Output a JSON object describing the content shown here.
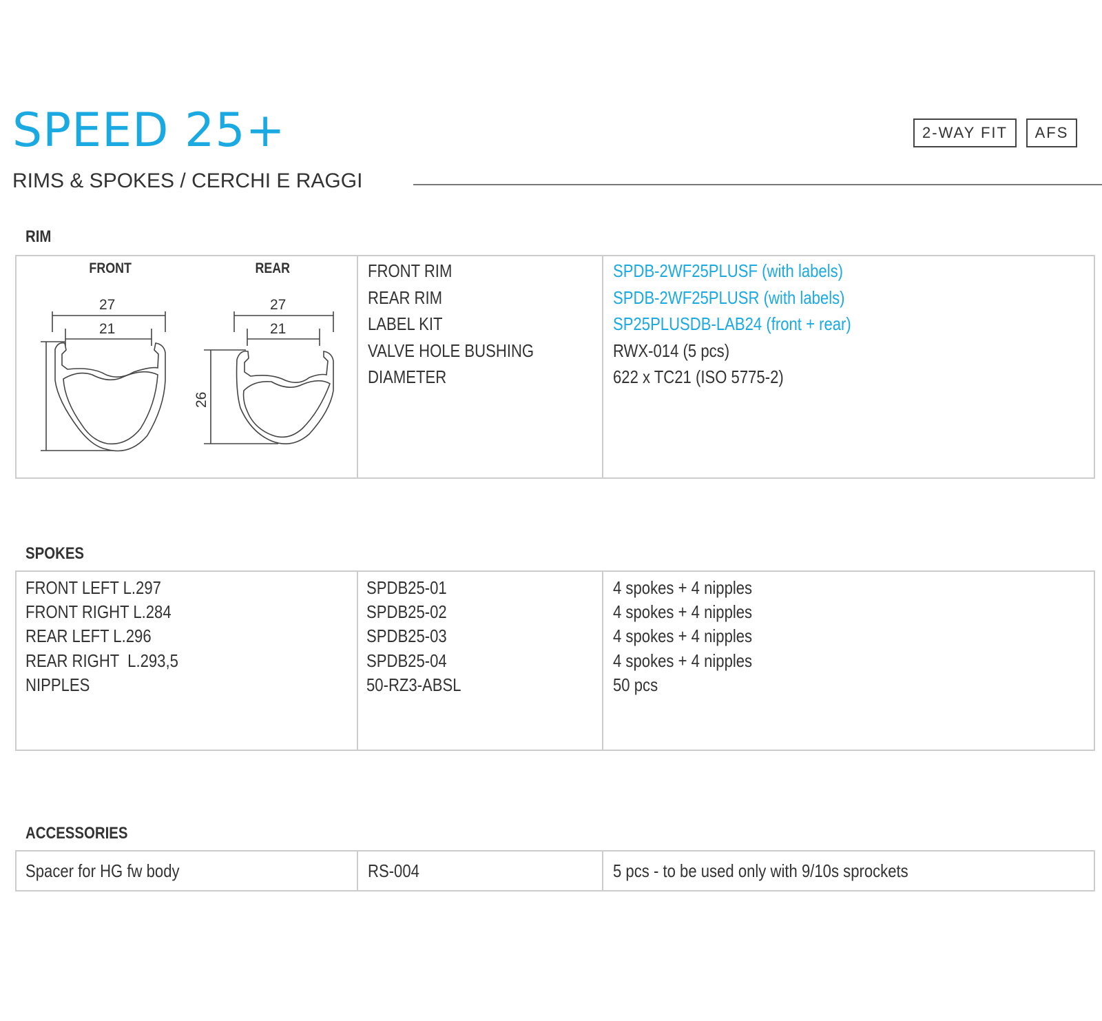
{
  "header": {
    "title": "SPEED 25+",
    "subtitle": "RIMS & SPOKES / CERCHI E RAGGI",
    "badges": [
      "2-WAY FIT",
      "AFS"
    ]
  },
  "colors": {
    "accent": "#1ba9e1",
    "text": "#333333",
    "border": "#cccccc"
  },
  "rim": {
    "heading": "RIM",
    "diagram": {
      "front_label": "FRONT",
      "rear_label": "REAR",
      "outer_width": "27",
      "inner_width": "21",
      "height": "26"
    },
    "labels": [
      "FRONT RIM",
      "REAR RIM",
      "LABEL KIT",
      "VALVE HOLE BUSHING",
      "DIAMETER"
    ],
    "values": [
      {
        "text": "SPDB-2WF25PLUSF (with labels)",
        "link": true
      },
      {
        "text": "SPDB-2WF25PLUSR (with labels)",
        "link": true
      },
      {
        "text": "SP25PLUSDB-LAB24 (front + rear)",
        "link": true
      },
      {
        "text": "RWX-014 (5 pcs)",
        "link": false
      },
      {
        "text": "622 x TC21 (ISO 5775-2)",
        "link": false
      }
    ]
  },
  "spokes": {
    "heading": "SPOKES",
    "rows": [
      {
        "name": "FRONT LEFT L.297",
        "code": "SPDB25-01",
        "qty": "4 spokes + 4 nipples"
      },
      {
        "name": "FRONT RIGHT L.284",
        "code": "SPDB25-02",
        "qty": "4 spokes + 4 nipples"
      },
      {
        "name": "REAR LEFT L.296",
        "code": "SPDB25-03",
        "qty": "4 spokes + 4 nipples"
      },
      {
        "name": "REAR RIGHT  L.293,5",
        "code": "SPDB25-04",
        "qty": "4 spokes + 4 nipples"
      },
      {
        "name": "NIPPLES",
        "code": "50-RZ3-ABSL",
        "qty": "50 pcs"
      }
    ]
  },
  "accessories": {
    "heading": "ACCESSORIES",
    "rows": [
      {
        "name": "Spacer for HG fw body",
        "code": "RS-004",
        "qty": "5 pcs - to be used only with 9/10s sprockets"
      }
    ]
  }
}
